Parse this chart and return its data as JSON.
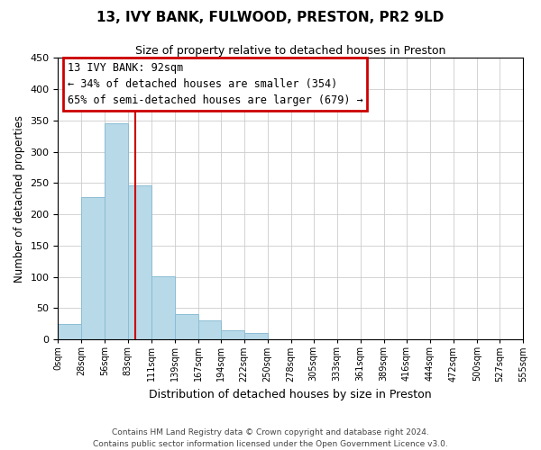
{
  "title": "13, IVY BANK, FULWOOD, PRESTON, PR2 9LD",
  "subtitle": "Size of property relative to detached houses in Preston",
  "xlabel": "Distribution of detached houses by size in Preston",
  "ylabel": "Number of detached properties",
  "bar_color": "#b8d9e8",
  "bar_edge_color": "#8bbdd4",
  "bin_edges": [
    0,
    28,
    56,
    83,
    111,
    139,
    167,
    194,
    222,
    250,
    278,
    305,
    333,
    361,
    389,
    416,
    444,
    472,
    500,
    527,
    555
  ],
  "bar_heights": [
    25,
    228,
    345,
    246,
    101,
    40,
    30,
    15,
    10,
    1,
    0,
    0,
    0,
    0,
    0,
    0,
    0,
    0,
    0,
    1
  ],
  "property_line_x": 92,
  "annotation_title": "13 IVY BANK: 92sqm",
  "annotation_line1": "← 34% of detached houses are smaller (354)",
  "annotation_line2": "65% of semi-detached houses are larger (679) →",
  "ylim": [
    0,
    450
  ],
  "yticks": [
    0,
    50,
    100,
    150,
    200,
    250,
    300,
    350,
    400,
    450
  ],
  "tick_labels": [
    "0sqm",
    "28sqm",
    "56sqm",
    "83sqm",
    "111sqm",
    "139sqm",
    "167sqm",
    "194sqm",
    "222sqm",
    "250sqm",
    "278sqm",
    "305sqm",
    "333sqm",
    "361sqm",
    "389sqm",
    "416sqm",
    "444sqm",
    "472sqm",
    "500sqm",
    "527sqm",
    "555sqm"
  ],
  "footer_line1": "Contains HM Land Registry data © Crown copyright and database right 2024.",
  "footer_line2": "Contains public sector information licensed under the Open Government Licence v3.0.",
  "annotation_box_color": "#ffffff",
  "annotation_box_edge": "#cc0000",
  "red_line_color": "#cc0000",
  "grid_color": "#cccccc",
  "title_fontsize": 11,
  "subtitle_fontsize": 9,
  "ylabel_fontsize": 8.5,
  "xlabel_fontsize": 9,
  "annotation_fontsize": 8.5,
  "footer_fontsize": 6.5,
  "xtick_fontsize": 7,
  "ytick_fontsize": 8
}
